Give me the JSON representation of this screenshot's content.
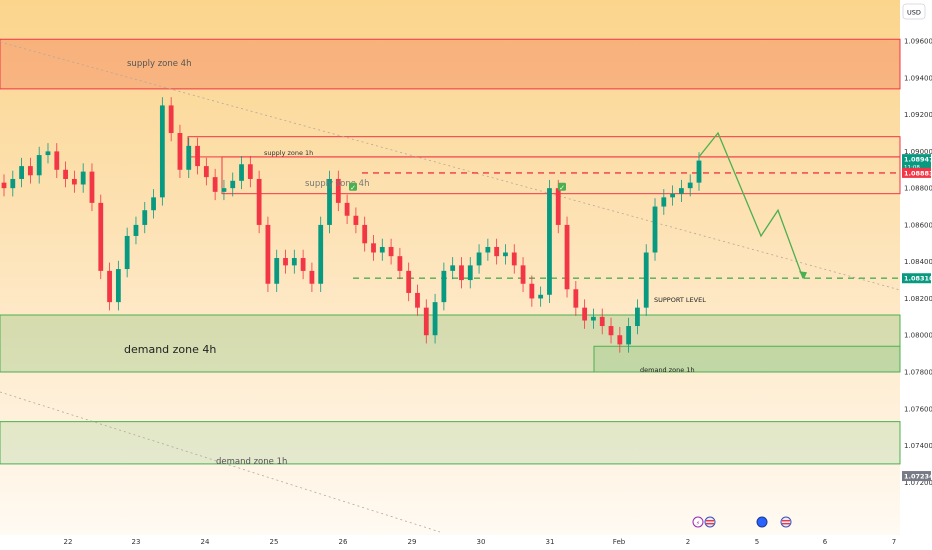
{
  "chart_data": {
    "type": "candlestick",
    "instrument_currency": "USD",
    "y_axis": {
      "ticks": [
        "1.09600",
        "1.09400",
        "1.09200",
        "1.09000",
        "1.08800",
        "1.08600",
        "1.08400",
        "1.08200",
        "1.08000",
        "1.07800",
        "1.07600",
        "1.07400",
        "1.07200"
      ],
      "ylim": [
        1.0712,
        1.0978
      ]
    },
    "x_axis": {
      "ticks": [
        "22",
        "23",
        "24",
        "25",
        "26",
        "29",
        "30",
        "31",
        "Feb",
        "2",
        "5",
        "6",
        "7"
      ]
    },
    "price_badges": [
      {
        "price": "1.08947",
        "sub": "11:08",
        "color": "#089981"
      },
      {
        "price": "1.08883",
        "color": "#f23645"
      },
      {
        "price": "1.08310",
        "color": "#089981"
      },
      {
        "price": "1.07234",
        "color": "#787b86"
      }
    ],
    "zones": [
      {
        "label": "supply zone 4h",
        "low": 1.0934,
        "high": 1.0961,
        "kind": "supply"
      },
      {
        "label": "supply zone 1h",
        "low": 1.0897,
        "high": 1.0908,
        "kind": "supply"
      },
      {
        "label": "supply zone 4h",
        "low": 1.0877,
        "high": 1.0897,
        "kind": "supply-thin"
      },
      {
        "label": "demand zone 4h",
        "low": 1.078,
        "high": 1.0811,
        "kind": "demand"
      },
      {
        "label": "demand zone 1h",
        "low": 1.078,
        "high": 1.0794,
        "kind": "demand"
      },
      {
        "label": "demand zone 1h",
        "low": 1.073,
        "high": 1.0753,
        "kind": "demand"
      }
    ],
    "levels": [
      {
        "price": 1.08883,
        "style": "dashed",
        "color": "#f23645"
      },
      {
        "price": 1.0831,
        "style": "dashed",
        "color": "#4caf50",
        "label": "SUPPORT LEVEL"
      }
    ],
    "projection": [
      1.0897,
      1.091,
      1.0854,
      1.0868,
      1.0831
    ],
    "closes": [
      1.088,
      1.0885,
      1.0892,
      1.0887,
      1.0898,
      1.09,
      1.089,
      1.0885,
      1.0882,
      1.0889,
      1.0872,
      1.0835,
      1.0818,
      1.0836,
      1.0854,
      1.086,
      1.0868,
      1.0875,
      1.0925,
      1.091,
      1.089,
      1.0903,
      1.0892,
      1.0886,
      1.0878,
      1.088,
      1.0884,
      1.0893,
      1.0885,
      1.086,
      1.0828,
      1.0842,
      1.0838,
      1.0842,
      1.0835,
      1.0828,
      1.086,
      1.0885,
      1.0872,
      1.0865,
      1.086,
      1.085,
      1.0845,
      1.0848,
      1.0843,
      1.0835,
      1.0823,
      1.0815,
      1.08,
      1.0818,
      1.0835,
      1.0838,
      1.083,
      1.0838,
      1.0845,
      1.0848,
      1.0843,
      1.0845,
      1.0838,
      1.0828,
      1.082,
      1.0822,
      1.088,
      1.086,
      1.0825,
      1.0815,
      1.0808,
      1.081,
      1.0805,
      1.08,
      1.0795,
      1.0805,
      1.0815,
      1.0845,
      1.087,
      1.0875,
      1.0877,
      1.088,
      1.0883,
      1.0895
    ],
    "checkmarks": [
      {
        "label": "✓",
        "price": 1.0884
      },
      {
        "label": "✓",
        "price": 1.0884
      }
    ],
    "labels": {
      "supply_4h_top": "supply zone 4h",
      "supply_1h": "supply zone 1h",
      "supply_4h_mid": "supply zone 4h",
      "demand_4h": "demand zone 4h",
      "demand_1h_small": "demand zone 1h",
      "demand_1h_bottom": "demand zone 1h",
      "support": "SUPPORT LEVEL"
    },
    "colors": {
      "up": "#089981",
      "down": "#f23645",
      "supply_line": "#f23645",
      "demand_line": "#4caf50"
    }
  }
}
